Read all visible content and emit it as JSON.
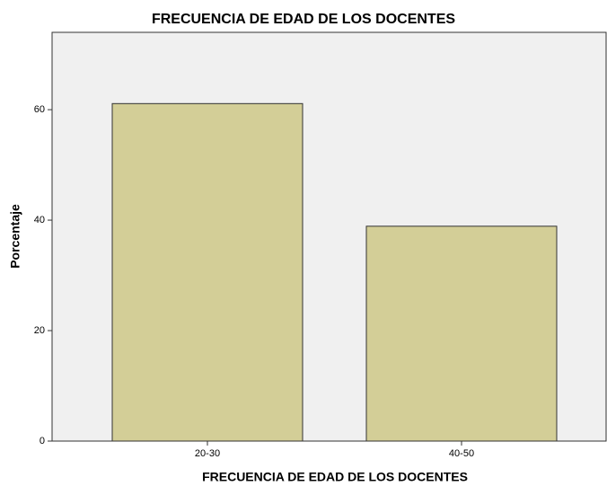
{
  "chart_data": {
    "type": "bar",
    "title": "FRECUENCIA DE EDAD DE LOS DOCENTES",
    "x_label": "FRECUENCIA DE EDAD DE LOS DOCENTES",
    "y_label": "Porcentaje",
    "categories": [
      "20-30",
      "40-50"
    ],
    "values": [
      61.1,
      38.9
    ],
    "color": "#d3ce97",
    "ylim": [
      0,
      74
    ],
    "yticks": [
      0,
      20,
      40,
      60
    ],
    "grid": false
  }
}
